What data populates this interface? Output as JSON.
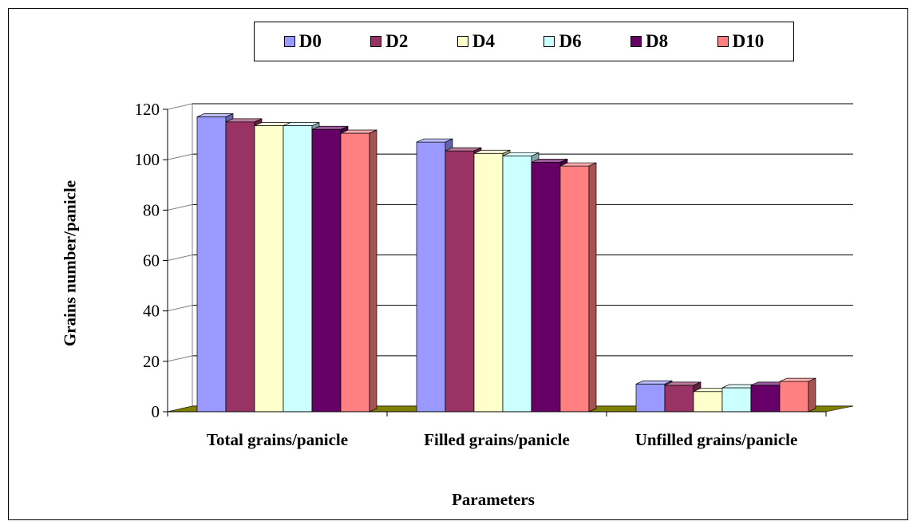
{
  "chart_data": {
    "type": "bar",
    "title": "",
    "xlabel": "Parameters",
    "ylabel": "Grains number/panicle",
    "categories": [
      "Total grains/panicle",
      "Filled grains/panicle",
      "Unfilled grains/panicle"
    ],
    "ylim": [
      0,
      120
    ],
    "yticks": [
      "0",
      "20",
      "40",
      "60",
      "80",
      "100",
      "120"
    ],
    "grid": true,
    "legend_position": "top",
    "series": [
      {
        "name": "D0",
        "color": "#9999ff",
        "values": [
          117,
          107,
          11
        ]
      },
      {
        "name": "D2",
        "color": "#993366",
        "values": [
          115,
          103.5,
          10.5
        ]
      },
      {
        "name": "D4",
        "color": "#ffffcc",
        "values": [
          113.5,
          102.5,
          8
        ]
      },
      {
        "name": "D6",
        "color": "#ccffff",
        "values": [
          113.5,
          101.5,
          9.5
        ]
      },
      {
        "name": "D8",
        "color": "#660066",
        "values": [
          112,
          99,
          10.5
        ]
      },
      {
        "name": "D10",
        "color": "#ff8080",
        "values": [
          110.5,
          97.5,
          12
        ]
      }
    ],
    "floor_color": "#808000"
  }
}
